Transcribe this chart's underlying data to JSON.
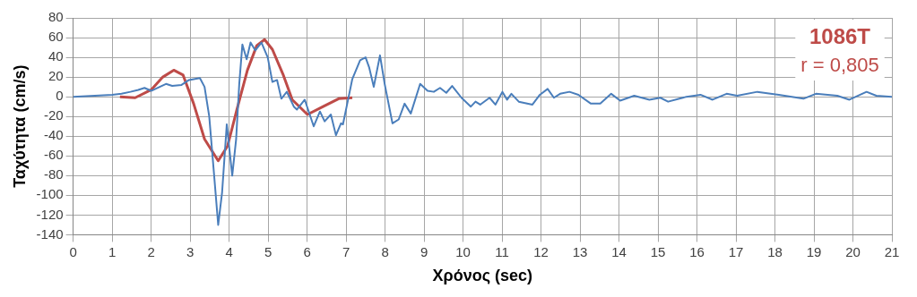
{
  "chart_data": {
    "type": "line",
    "xlabel": "Χρόνος (sec)",
    "ylabel": "Ταχύτητα (cm/s)",
    "annotations": [
      "1086T",
      "r = 0,805"
    ],
    "grid": true,
    "legend": false,
    "marker": "none",
    "line_style": "solid",
    "xlim": [
      0,
      21
    ],
    "xticks": [
      0,
      1,
      2,
      3,
      4,
      5,
      6,
      7,
      8,
      9,
      10,
      11,
      12,
      13,
      14,
      15,
      16,
      17,
      18,
      19,
      20,
      21
    ],
    "ylim": [
      -140,
      80
    ],
    "yticks": [
      -140,
      -120,
      -100,
      -80,
      -60,
      -40,
      -20,
      0,
      20,
      40,
      60,
      80
    ],
    "series": [
      {
        "color": "#4a7ebb",
        "x": [
          0,
          1.0,
          1.24,
          1.47,
          1.67,
          1.83,
          2.0,
          2.22,
          2.38,
          2.54,
          2.78,
          2.97,
          3.25,
          3.37,
          3.49,
          3.61,
          3.72,
          3.82,
          3.94,
          4.08,
          4.18,
          4.26,
          4.34,
          4.45,
          4.55,
          4.67,
          4.83,
          4.99,
          5.11,
          5.23,
          5.34,
          5.48,
          5.66,
          5.74,
          5.94,
          6.17,
          6.33,
          6.45,
          6.61,
          6.74,
          6.87,
          6.92,
          7.03,
          7.16,
          7.36,
          7.5,
          7.59,
          7.71,
          7.87,
          7.99,
          8.19,
          8.35,
          8.5,
          8.66,
          8.9,
          9.09,
          9.25,
          9.41,
          9.57,
          9.72,
          9.96,
          10.2,
          10.32,
          10.44,
          10.68,
          10.83,
          11.01,
          11.13,
          11.24,
          11.43,
          11.78,
          11.97,
          12.17,
          12.33,
          12.49,
          12.73,
          12.96,
          13.28,
          13.52,
          13.8,
          14.03,
          14.39,
          14.78,
          15.06,
          15.26,
          15.73,
          16.09,
          16.4,
          16.76,
          17.03,
          17.55,
          18.1,
          18.73,
          19.05,
          19.6,
          19.91,
          20.35,
          20.6,
          21.0
        ],
        "values": [
          0,
          2,
          3,
          5,
          7,
          9,
          6,
          10,
          13,
          11,
          12,
          17,
          19,
          10,
          -20,
          -77,
          -130,
          -97,
          -28,
          -80,
          -43,
          13,
          53,
          38,
          55,
          47,
          55,
          40,
          15,
          17,
          -2,
          5,
          -10,
          -13,
          -3,
          -30,
          -15,
          -25,
          -18,
          -39,
          -27,
          -28,
          -7,
          18,
          37,
          40,
          30,
          10,
          42,
          13,
          -27,
          -23,
          -7,
          -17,
          13,
          6,
          5,
          9,
          4,
          11,
          -1,
          -10,
          -5,
          -8,
          -1,
          -8,
          5,
          -3,
          3,
          -5,
          -8,
          2,
          8,
          -1,
          3,
          5,
          2,
          -7,
          -7,
          3,
          -4,
          1,
          -3,
          -1,
          -5,
          0,
          2,
          -3,
          3,
          1,
          5,
          2,
          -2,
          3,
          1,
          -3,
          5,
          1,
          0
        ]
      },
      {
        "color": "#be4b48",
        "x": [
          1.2,
          1.59,
          2.0,
          2.3,
          2.58,
          2.82,
          3.09,
          3.37,
          3.72,
          3.96,
          4.2,
          4.47,
          4.71,
          4.91,
          5.11,
          5.38,
          5.62,
          6.01,
          6.41,
          6.81,
          7.16
        ],
        "values": [
          0,
          -1,
          7,
          20,
          27,
          22,
          -7,
          -43,
          -65,
          -50,
          -13,
          27,
          52,
          58,
          48,
          23,
          -3,
          -18,
          -10,
          -2,
          -1
        ]
      }
    ]
  }
}
